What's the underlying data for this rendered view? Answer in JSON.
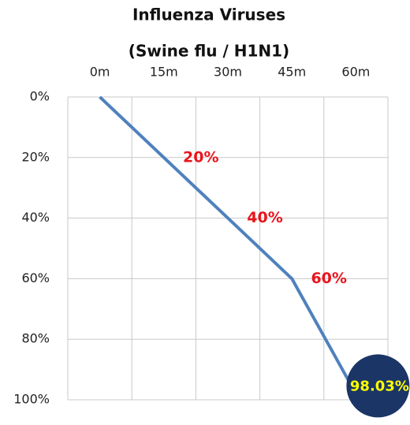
{
  "chart_data": {
    "type": "line",
    "title": "Influenza Viruses",
    "subtitle": "(Swine flu / H1N1)",
    "categories": [
      "0m",
      "15m",
      "30m",
      "45m",
      "60m"
    ],
    "series": [
      {
        "color": "#4f81bd",
        "values": [
          0,
          20,
          40,
          60,
          98.03
        ],
        "value_labels": [
          null,
          "20%",
          "40%",
          "60%",
          "98.03%"
        ]
      }
    ],
    "ylim": [
      0,
      100
    ],
    "y_inverted": true,
    "yticks": [
      {
        "value": 0,
        "label": "0%"
      },
      {
        "value": 20,
        "label": "20%"
      },
      {
        "value": 40,
        "label": "40%"
      },
      {
        "value": 60,
        "label": "60%"
      },
      {
        "value": 80,
        "label": "80%"
      },
      {
        "value": 100,
        "label": "100%"
      }
    ],
    "x_axis_position": "top",
    "grid": true
  }
}
